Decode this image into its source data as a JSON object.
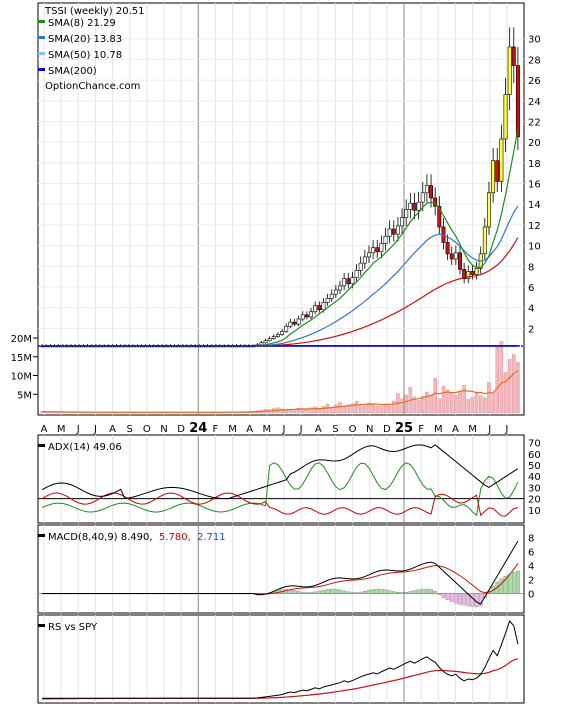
{
  "chart_data": {
    "type": "candlestick",
    "main_panel": {
      "legend": [
        {
          "label": "TSSI (weekly) 20.51",
          "color": "#000000",
          "swatch": false
        },
        {
          "label": "SMA(8) 21.29",
          "color": "#1a8f1a",
          "swatch": true
        },
        {
          "label": "SMA(20) 13.83",
          "color": "#3377cc",
          "swatch": true
        },
        {
          "label": "SMA(50) 10.78",
          "color": "#88c4ee",
          "swatch": true
        },
        {
          "label": "SMA(200)",
          "color": "#0000cc",
          "swatch": true
        },
        {
          "label": "OptionChance.com",
          "color": "#000000",
          "swatch": false
        }
      ],
      "y_ticks": [
        2,
        4,
        6,
        8,
        10,
        12,
        14,
        16,
        18,
        20,
        22,
        24,
        26,
        28,
        30
      ],
      "ylim": [
        0,
        32
      ],
      "volume_ticks": [
        "20M",
        "15M",
        "10M",
        "5M"
      ],
      "volume_values": [
        20,
        15,
        10,
        5
      ],
      "volume_unit": "M"
    },
    "x_axis": {
      "labels": [
        "A",
        "M",
        "J",
        "J",
        "A",
        "S",
        "O",
        "N",
        "D",
        "24",
        "F",
        "M",
        "A",
        "M",
        "J",
        "J",
        "A",
        "S",
        "O",
        "N",
        "D",
        "25",
        "F",
        "M",
        "A",
        "M",
        "J",
        "J"
      ],
      "bold_labels": [
        "24",
        "25"
      ]
    },
    "price_series": {
      "weeks": 116,
      "close": [
        0.3,
        0.3,
        0.3,
        0.3,
        0.3,
        0.3,
        0.3,
        0.3,
        0.3,
        0.3,
        0.3,
        0.3,
        0.3,
        0.3,
        0.3,
        0.3,
        0.3,
        0.3,
        0.3,
        0.3,
        0.3,
        0.3,
        0.3,
        0.3,
        0.3,
        0.3,
        0.3,
        0.3,
        0.3,
        0.3,
        0.3,
        0.3,
        0.3,
        0.3,
        0.3,
        0.3,
        0.3,
        0.3,
        0.3,
        0.3,
        0.3,
        0.3,
        0.3,
        0.3,
        0.3,
        0.3,
        0.3,
        0.3,
        0.3,
        0.3,
        0.3,
        0.3,
        0.4,
        0.6,
        0.8,
        1,
        1.2,
        1.4,
        1.7,
        2.2,
        2.6,
        2.4,
        2.9,
        3.3,
        3.1,
        3.6,
        4.2,
        3.8,
        4.5,
        4.9,
        5.3,
        5.7,
        6.1,
        6.8,
        6.3,
        6.9,
        7.6,
        8.3,
        8.9,
        9.3,
        9.8,
        9.4,
        10.2,
        10.9,
        11.6,
        11.1,
        11.9,
        12.7,
        13.5,
        14.1,
        13.4,
        14.2,
        15.1,
        15.8,
        14.6,
        13.8,
        11.8,
        10.3,
        9.2,
        8.7,
        9.3,
        7.7,
        6.8,
        7.5,
        7.2,
        7.8,
        9.2,
        11.8,
        15.1,
        18.2,
        16.2,
        20.3,
        24.6,
        29.2,
        27.4,
        20.51
      ],
      "sma8": [
        0.3,
        0.3,
        0.3,
        0.3,
        0.3,
        0.3,
        0.3,
        0.3,
        0.3,
        0.3,
        0.3,
        0.3,
        0.3,
        0.3,
        0.3,
        0.3,
        0.3,
        0.3,
        0.3,
        0.3,
        0.3,
        0.3,
        0.3,
        0.3,
        0.3,
        0.3,
        0.3,
        0.3,
        0.3,
        0.3,
        0.3,
        0.3,
        0.3,
        0.3,
        0.3,
        0.3,
        0.3,
        0.3,
        0.3,
        0.3,
        0.3,
        0.3,
        0.3,
        0.3,
        0.3,
        0.3,
        0.3,
        0.3,
        0.3,
        0.3,
        0.3,
        0.3,
        0.31,
        0.35,
        0.41,
        0.5,
        0.59,
        0.7,
        0.85,
        1.1,
        1.45,
        1.71,
        2.0,
        2.3,
        2.55,
        2.8,
        3.1,
        3.4,
        3.7,
        4.0,
        4.3,
        4.6,
        4.9,
        5.3,
        5.7,
        6.1,
        6.5,
        6.9,
        7.4,
        7.8,
        8.3,
        8.6,
        8.9,
        9.3,
        9.7,
        10.1,
        10.6,
        11.1,
        11.7,
        12.3,
        12.8,
        13.2,
        13.7,
        14.1,
        14.2,
        14.1,
        13.6,
        12.9,
        12.2,
        11.5,
        10.9,
        10.1,
        9.3,
        8.6,
        8.1,
        7.9,
        7.9,
        8.3,
        9.0,
        10.3,
        11.5,
        13.0,
        14.9,
        17.0,
        19.1,
        21.29
      ],
      "sma20": [
        0.3,
        0.3,
        0.3,
        0.3,
        0.3,
        0.3,
        0.3,
        0.3,
        0.3,
        0.3,
        0.3,
        0.3,
        0.3,
        0.3,
        0.3,
        0.3,
        0.3,
        0.3,
        0.3,
        0.3,
        0.3,
        0.3,
        0.3,
        0.3,
        0.3,
        0.3,
        0.3,
        0.3,
        0.3,
        0.3,
        0.3,
        0.3,
        0.3,
        0.3,
        0.3,
        0.3,
        0.3,
        0.3,
        0.3,
        0.3,
        0.3,
        0.3,
        0.3,
        0.3,
        0.3,
        0.3,
        0.3,
        0.3,
        0.3,
        0.3,
        0.3,
        0.3,
        0.31,
        0.32,
        0.35,
        0.38,
        0.42,
        0.47,
        0.54,
        0.63,
        0.74,
        0.85,
        0.98,
        1.12,
        1.26,
        1.42,
        1.6,
        1.78,
        1.98,
        2.2,
        2.42,
        2.65,
        2.9,
        3.16,
        3.42,
        3.7,
        4.0,
        4.3,
        4.62,
        4.95,
        5.3,
        5.6,
        5.95,
        6.3,
        6.7,
        7.1,
        7.5,
        7.95,
        8.4,
        8.85,
        9.3,
        9.7,
        10.1,
        10.5,
        10.8,
        11.0,
        11.1,
        11.0,
        10.8,
        10.6,
        10.3,
        9.9,
        9.5,
        9.1,
        8.8,
        8.6,
        8.5,
        8.6,
        8.9,
        9.4,
        9.9,
        10.6,
        11.5,
        12.4,
        13.2,
        13.83
      ],
      "sma50": [
        0.3,
        0.3,
        0.3,
        0.3,
        0.3,
        0.3,
        0.3,
        0.3,
        0.3,
        0.3,
        0.3,
        0.3,
        0.3,
        0.3,
        0.3,
        0.3,
        0.3,
        0.3,
        0.3,
        0.3,
        0.3,
        0.3,
        0.3,
        0.3,
        0.3,
        0.3,
        0.3,
        0.3,
        0.3,
        0.3,
        0.3,
        0.3,
        0.3,
        0.3,
        0.3,
        0.3,
        0.3,
        0.3,
        0.3,
        0.3,
        0.3,
        0.3,
        0.3,
        0.3,
        0.3,
        0.3,
        0.3,
        0.3,
        0.3,
        0.3,
        0.3,
        0.3,
        0.3,
        0.31,
        0.32,
        0.33,
        0.35,
        0.37,
        0.39,
        0.42,
        0.46,
        0.5,
        0.55,
        0.6,
        0.66,
        0.72,
        0.79,
        0.87,
        0.95,
        1.04,
        1.13,
        1.23,
        1.34,
        1.45,
        1.57,
        1.7,
        1.84,
        1.98,
        2.13,
        2.29,
        2.46,
        2.63,
        2.81,
        3.0,
        3.2,
        3.4,
        3.61,
        3.83,
        4.06,
        4.29,
        4.53,
        4.78,
        5.03,
        5.29,
        5.54,
        5.78,
        6.0,
        6.2,
        6.38,
        6.54,
        6.68,
        6.79,
        6.88,
        6.96,
        7.03,
        7.1,
        7.2,
        7.35,
        7.55,
        7.82,
        8.12,
        8.5,
        8.98,
        9.5,
        10.1,
        10.78
      ],
      "sma200": [
        0.3,
        0.3,
        0.3,
        0.3,
        0.3,
        0.3,
        0.3,
        0.3,
        0.3,
        0.3,
        0.3,
        0.3,
        0.3,
        0.3,
        0.3,
        0.3,
        0.3,
        0.3,
        0.3,
        0.3,
        0.3,
        0.3,
        0.3,
        0.3,
        0.3,
        0.3,
        0.3,
        0.3,
        0.3,
        0.3,
        0.3,
        0.3,
        0.3,
        0.3,
        0.3,
        0.3,
        0.3,
        0.3,
        0.3,
        0.3,
        0.3,
        0.3,
        0.3,
        0.3,
        0.3,
        0.3,
        0.3,
        0.3,
        0.3,
        0.3,
        0.3,
        0.3,
        0.3,
        0.3,
        0.3,
        0.3,
        0.3,
        0.3,
        0.3,
        0.3,
        0.3,
        0.3,
        0.3,
        0.3,
        0.3,
        0.3,
        0.3,
        0.3,
        0.3,
        0.3,
        0.3,
        0.3,
        0.3,
        0.3,
        0.3,
        0.3,
        0.3,
        0.3,
        0.3,
        0.3,
        0.3,
        0.3,
        0.3,
        0.3,
        0.3,
        0.3,
        0.3,
        0.3,
        0.3,
        0.3,
        0.3,
        0.3,
        0.3,
        0.3,
        0.3,
        0.3,
        0.3,
        0.3,
        0.3,
        0.3,
        0.3,
        0.3,
        0.3,
        0.3,
        0.3,
        0.3,
        0.3,
        0.3,
        0.3,
        0.3,
        0.3,
        0.3,
        0.3,
        0.3,
        0.3,
        0.3
      ],
      "volume_m": [
        0.4,
        0.3,
        0.3,
        0.3,
        0.3,
        0.2,
        0.2,
        0.2,
        0.2,
        0.2,
        0.2,
        0.2,
        0.2,
        0.2,
        0.2,
        0.2,
        0.2,
        0.2,
        0.2,
        0.2,
        0.2,
        0.2,
        0.2,
        0.2,
        0.2,
        0.2,
        0.2,
        0.2,
        0.2,
        0.2,
        0.2,
        0.2,
        0.2,
        0.2,
        0.2,
        0.2,
        0.2,
        0.2,
        0.2,
        0.2,
        0.2,
        0.2,
        0.2,
        0.2,
        0.2,
        0.2,
        0.3,
        0.3,
        0.3,
        0.4,
        0.4,
        0.5,
        0.6,
        0.8,
        1.0,
        0.9,
        1.2,
        1.4,
        1.1,
        0.8,
        1.0,
        0.9,
        1.3,
        1.2,
        0.9,
        1.4,
        1.6,
        1.2,
        1.8,
        2.4,
        1.6,
        2.2,
        2.8,
        1.9,
        2.2,
        2.5,
        3.1,
        2.0,
        2.4,
        2.7,
        2.2,
        1.8,
        2.0,
        2.1,
        2.4,
        3.2,
        5.2,
        3.8,
        4.8,
        6.9,
        4.3,
        3.4,
        4.5,
        5.6,
        4.8,
        9.3,
        3.8,
        7.1,
        6.2,
        5.4,
        4.8,
        5.9,
        7.4,
        3.7,
        4.2,
        5.6,
        4.6,
        4.1,
        8.2,
        5.4,
        17.5,
        19.1,
        10.8,
        14.3,
        15.6,
        13.5
      ]
    },
    "adx_panel": {
      "title": "ADX(14) 49.06",
      "y_ticks": [
        10,
        20,
        30,
        40,
        50,
        60,
        70
      ],
      "ylim": [
        0,
        75
      ],
      "reference_line": 20,
      "adx_color": "#000000",
      "plus_di_color": "#1a8f1a",
      "minus_di_color": "#cc0000"
    },
    "macd_panel": {
      "title": "MACD(8,40,9) 8.490,",
      "signal_value": "5.780,",
      "histogram_value": "2.711",
      "y_ticks": [
        0,
        2,
        4,
        6,
        8
      ],
      "ylim": [
        -2.5,
        9.5
      ]
    },
    "rs_panel": {
      "title": "RS vs SPY"
    }
  }
}
